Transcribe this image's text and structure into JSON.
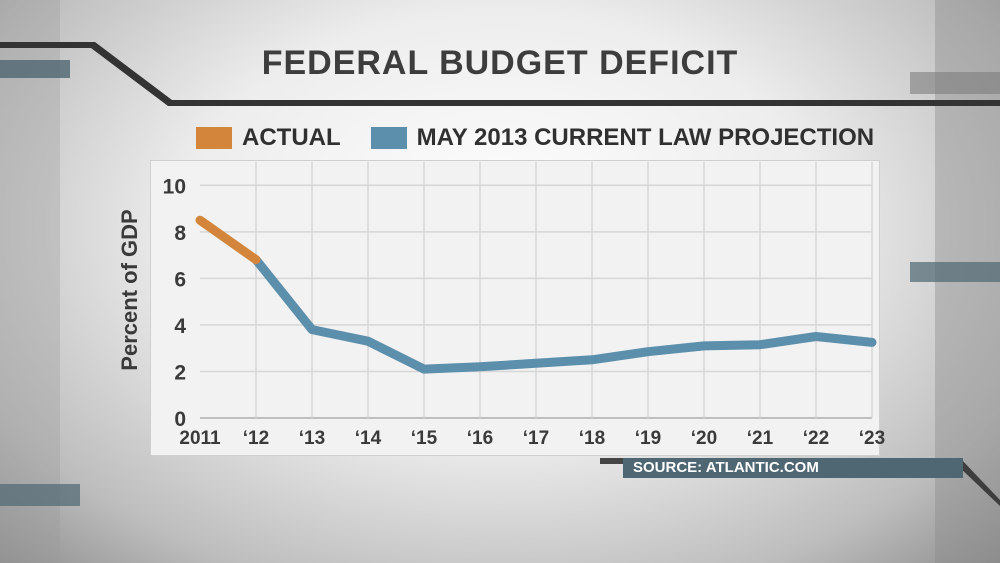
{
  "title": "FEDERAL BUDGET DEFICIT",
  "legend": [
    {
      "label": "ACTUAL",
      "color": "#d4853c"
    },
    {
      "label": "MAY 2013 CURRENT LAW PROJECTION",
      "color": "#5b8fac"
    }
  ],
  "source": "SOURCE: ATLANTIC.COM",
  "chart_data": {
    "type": "line",
    "title": "FEDERAL BUDGET DEFICIT",
    "xlabel": "",
    "ylabel": "Percent of GDP",
    "x_tick_labels": [
      "2011",
      "‘12",
      "‘13",
      "‘14",
      "‘15",
      "‘16",
      "‘17",
      "‘18",
      "‘19",
      "‘20",
      "‘21",
      "‘22",
      "‘23"
    ],
    "y_ticks": [
      0,
      2,
      4,
      6,
      8,
      10
    ],
    "ylim": [
      0,
      11
    ],
    "grid": true,
    "legend_position": "top",
    "series": [
      {
        "name": "ACTUAL",
        "color": "#d4853c",
        "x": [
          2011,
          2012
        ],
        "values": [
          8.5,
          6.8
        ]
      },
      {
        "name": "MAY 2013 CURRENT LAW PROJECTION",
        "color": "#5b8fac",
        "x": [
          2012,
          2013,
          2014,
          2015,
          2016,
          2017,
          2018,
          2019,
          2020,
          2021,
          2022,
          2023
        ],
        "values": [
          6.8,
          3.8,
          3.3,
          2.1,
          2.2,
          2.35,
          2.5,
          2.85,
          3.1,
          3.15,
          3.5,
          3.25
        ]
      }
    ]
  }
}
